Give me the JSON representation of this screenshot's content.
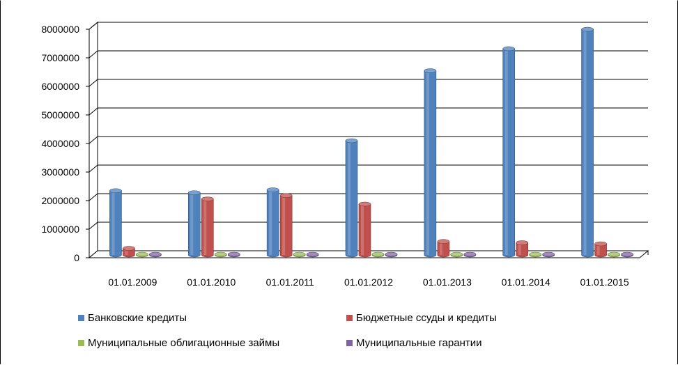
{
  "chart_data": {
    "type": "bar",
    "categories": [
      "01.01.2009",
      "01.01.2010",
      "01.01.2011",
      "01.01.2012",
      "01.01.2013",
      "01.01.2014",
      "01.01.2015"
    ],
    "series": [
      {
        "name": "Банковские кредиты",
        "color": "#4F81BD",
        "values": [
          2250000,
          2180000,
          2280000,
          4000000,
          6450000,
          7220000,
          7900000
        ]
      },
      {
        "name": "Бюджетные ссуды и кредиты",
        "color": "#C0504D",
        "values": [
          230000,
          1960000,
          2080000,
          1780000,
          470000,
          430000,
          390000
        ]
      },
      {
        "name": "Муниципальные облигационные займы",
        "color": "#9BBB59",
        "values": [
          40000,
          0,
          0,
          0,
          0,
          0,
          0
        ]
      },
      {
        "name": "Муниципальные гарантии",
        "color": "#8064A2",
        "values": [
          0,
          0,
          0,
          0,
          0,
          0,
          0
        ]
      }
    ],
    "y_ticks": [
      "0",
      "1000000",
      "2000000",
      "3000000",
      "4000000",
      "5000000",
      "6000000",
      "7000000",
      "8000000"
    ],
    "ylim": [
      0,
      8000000
    ],
    "grid": true,
    "legend": "bottom",
    "title": "",
    "xlabel": "",
    "ylabel": ""
  }
}
